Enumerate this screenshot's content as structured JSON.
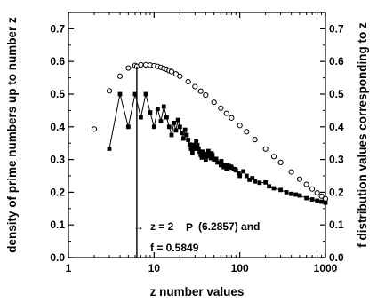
{
  "chart_data": {
    "type": "scatter",
    "xlabel": "z number values",
    "ylabel_left": "density of prime numbers up to number z",
    "ylabel_right": "f distribution values corresponding to z",
    "x_scale": "log",
    "xlim": [
      1,
      1000
    ],
    "ylim": [
      0.0,
      0.75
    ],
    "x_ticks": [
      1,
      10,
      100,
      1000
    ],
    "x_tick_labels": [
      "1",
      "10",
      "100",
      "1000"
    ],
    "y_ticks": [
      0.0,
      0.1,
      0.2,
      0.3,
      0.4,
      0.5,
      0.6,
      0.7
    ],
    "y_tick_labels": [
      "0.0",
      "0.1",
      "0.2",
      "0.3",
      "0.4",
      "0.5",
      "0.6",
      "0.7"
    ],
    "grid": false,
    "legend": "none",
    "colors": {
      "axes": "#000000",
      "markers": "#000000",
      "background": "#ffffff"
    },
    "series": [
      {
        "marker": "open-circle",
        "points": [
          [
            2,
            0.393
          ],
          [
            3,
            0.51
          ],
          [
            4,
            0.555
          ],
          [
            5,
            0.58
          ],
          [
            6,
            0.588
          ],
          [
            6.2857,
            0.5849
          ],
          [
            7,
            0.59
          ],
          [
            8,
            0.59
          ],
          [
            9,
            0.589
          ],
          [
            10,
            0.587
          ],
          [
            11,
            0.585
          ],
          [
            12,
            0.582
          ],
          [
            13,
            0.579
          ],
          [
            14,
            0.576
          ],
          [
            15,
            0.572
          ],
          [
            16,
            0.569
          ],
          [
            18,
            0.562
          ],
          [
            20,
            0.555
          ],
          [
            25,
            0.538
          ],
          [
            30,
            0.523
          ],
          [
            35,
            0.509
          ],
          [
            40,
            0.497
          ],
          [
            50,
            0.475
          ],
          [
            60,
            0.457
          ],
          [
            70,
            0.441
          ],
          [
            80,
            0.427
          ],
          [
            100,
            0.404
          ],
          [
            120,
            0.385
          ],
          [
            150,
            0.361
          ],
          [
            200,
            0.332
          ],
          [
            250,
            0.309
          ],
          [
            300,
            0.291
          ],
          [
            400,
            0.262
          ],
          [
            500,
            0.24
          ],
          [
            600,
            0.224
          ],
          [
            700,
            0.21
          ],
          [
            800,
            0.198
          ],
          [
            900,
            0.188
          ],
          [
            1000,
            0.18
          ]
        ]
      },
      {
        "marker": "filled-square",
        "points": [
          [
            3,
            0.333
          ],
          [
            4,
            0.5
          ],
          [
            5,
            0.4
          ],
          [
            6,
            0.5
          ],
          [
            7,
            0.429
          ],
          [
            8,
            0.5
          ],
          [
            9,
            0.444
          ],
          [
            10,
            0.4
          ],
          [
            11,
            0.455
          ],
          [
            12,
            0.417
          ],
          [
            13,
            0.462
          ],
          [
            14,
            0.429
          ],
          [
            15,
            0.4
          ],
          [
            16,
            0.375
          ],
          [
            17,
            0.412
          ],
          [
            18,
            0.389
          ],
          [
            19,
            0.421
          ],
          [
            20,
            0.4
          ],
          [
            21,
            0.381
          ],
          [
            22,
            0.364
          ],
          [
            23,
            0.391
          ],
          [
            24,
            0.375
          ],
          [
            25,
            0.36
          ],
          [
            26,
            0.346
          ],
          [
            27,
            0.333
          ],
          [
            28,
            0.321
          ],
          [
            29,
            0.345
          ],
          [
            30,
            0.333
          ],
          [
            31,
            0.355
          ],
          [
            32,
            0.344
          ],
          [
            33,
            0.333
          ],
          [
            34,
            0.324
          ],
          [
            35,
            0.314
          ],
          [
            36,
            0.306
          ],
          [
            37,
            0.324
          ],
          [
            38,
            0.316
          ],
          [
            39,
            0.308
          ],
          [
            40,
            0.3
          ],
          [
            41,
            0.317
          ],
          [
            42,
            0.31
          ],
          [
            43,
            0.326
          ],
          [
            44,
            0.318
          ],
          [
            45,
            0.311
          ],
          [
            46,
            0.304
          ],
          [
            47,
            0.319
          ],
          [
            48,
            0.313
          ],
          [
            50,
            0.3
          ],
          [
            53,
            0.302
          ],
          [
            55,
            0.291
          ],
          [
            60,
            0.283
          ],
          [
            61,
            0.295
          ],
          [
            65,
            0.277
          ],
          [
            67,
            0.284
          ],
          [
            70,
            0.271
          ],
          [
            71,
            0.282
          ],
          [
            75,
            0.28
          ],
          [
            79,
            0.278
          ],
          [
            80,
            0.275
          ],
          [
            85,
            0.271
          ],
          [
            89,
            0.27
          ],
          [
            90,
            0.267
          ],
          [
            97,
            0.258
          ],
          [
            100,
            0.25
          ],
          [
            110,
            0.264
          ],
          [
            120,
            0.25
          ],
          [
            130,
            0.238
          ],
          [
            140,
            0.243
          ],
          [
            150,
            0.233
          ],
          [
            170,
            0.229
          ],
          [
            200,
            0.23
          ],
          [
            220,
            0.218
          ],
          [
            250,
            0.212
          ],
          [
            300,
            0.207
          ],
          [
            350,
            0.2
          ],
          [
            400,
            0.195
          ],
          [
            450,
            0.193
          ],
          [
            500,
            0.19
          ],
          [
            600,
            0.182
          ],
          [
            700,
            0.178
          ],
          [
            800,
            0.174
          ],
          [
            900,
            0.171
          ],
          [
            1000,
            0.168
          ]
        ]
      }
    ],
    "vline_x": 6.2857,
    "annotation": {
      "arrow": "→",
      "line1_pre": "z = 2",
      "symbol": "P",
      "line1_post": "(6.2857) and",
      "line2": "f = 0.5849"
    }
  }
}
